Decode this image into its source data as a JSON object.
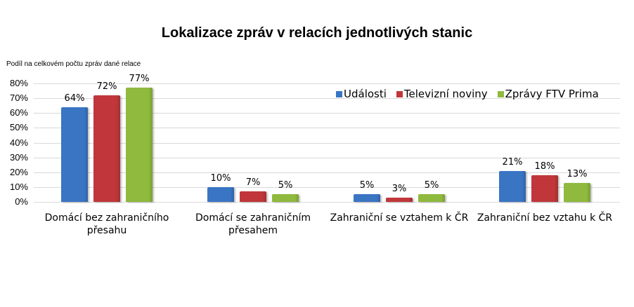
{
  "chart_data": {
    "type": "bar",
    "title": "Lokalizace zpráv v relacích jednotlivých stanic",
    "xlabel": "",
    "ylabel": "Podíl na celkovém počtu zpráv dané relace",
    "ylim": [
      0,
      80
    ],
    "yticks": [
      "0%",
      "10%",
      "20%",
      "30%",
      "40%",
      "50%",
      "60%",
      "70%",
      "80%"
    ],
    "grid": true,
    "legend_position": "top-right inside plot",
    "categories": [
      "Domácí bez zahraničního přesahu",
      "Domácí se zahraničním přesahem",
      "Zahraniční se vztahem k ČR",
      "Zahraniční bez vztahu k ČR"
    ],
    "series": [
      {
        "name": "Události",
        "color": "#3a75c4",
        "values": [
          64,
          10,
          5,
          21
        ],
        "labels": [
          "64%",
          "10%",
          "5%",
          "21%"
        ]
      },
      {
        "name": "Televizní noviny",
        "color": "#c0363a",
        "values": [
          72,
          7,
          3,
          18
        ],
        "labels": [
          "72%",
          "7%",
          "3%",
          "18%"
        ]
      },
      {
        "name": "Zprávy FTV Prima",
        "color": "#8fba3e",
        "values": [
          77,
          5,
          5,
          13
        ],
        "labels": [
          "77%",
          "5%",
          "5%",
          "13%"
        ]
      }
    ]
  },
  "category_lines": [
    [
      "Domácí bez zahraničního",
      "přesahu"
    ],
    [
      "Domácí se zahraničním",
      "přesahem"
    ],
    [
      "Zahraniční se vztahem k ČR"
    ],
    [
      "Zahraniční bez vztahu k ČR"
    ]
  ]
}
